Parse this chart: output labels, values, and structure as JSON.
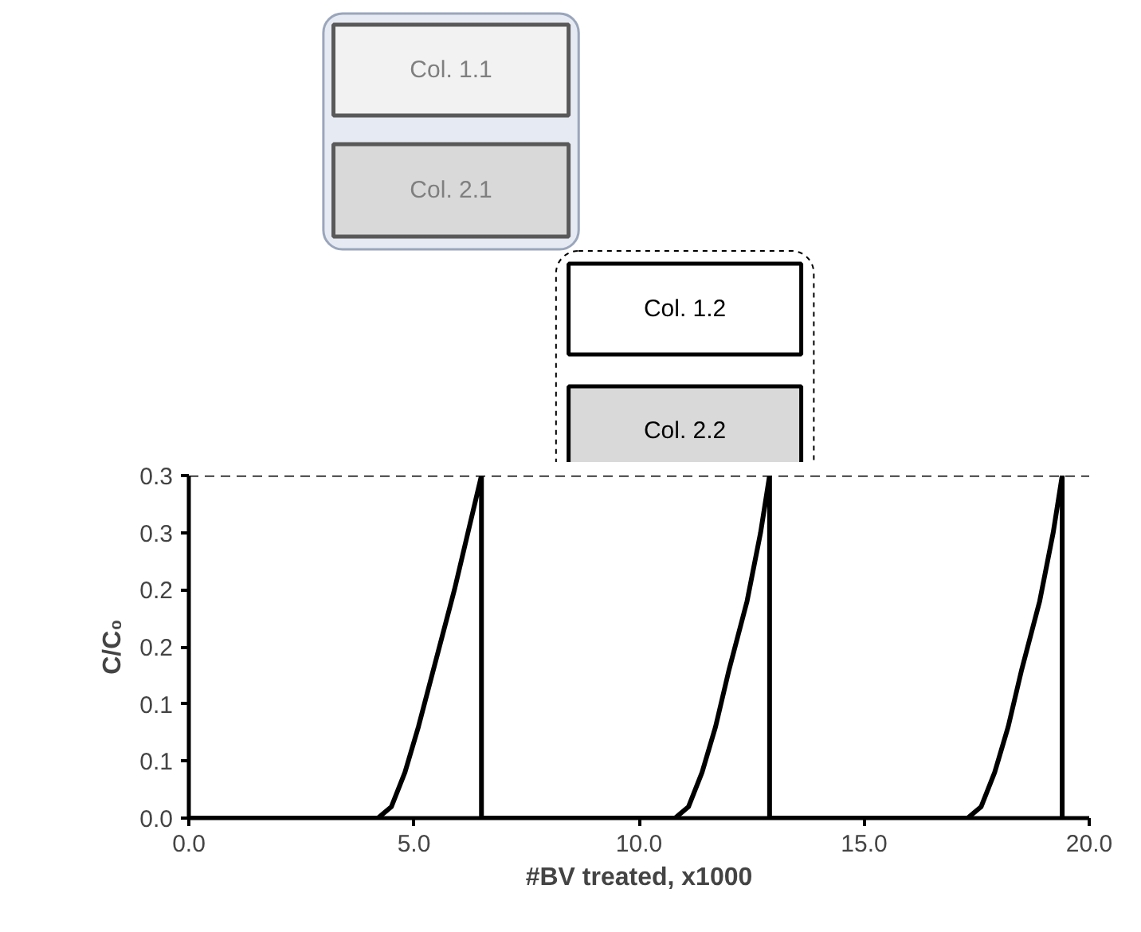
{
  "chart_data": {
    "type": "line",
    "xlabel": "#BV treated, x1000",
    "ylabel": "C/C₀",
    "series": [
      {
        "color": "#000000",
        "x": [
          0,
          4.2,
          4.5,
          4.8,
          5.1,
          5.5,
          5.9,
          6.2,
          6.5,
          6.5,
          10.8,
          11.1,
          11.4,
          11.7,
          12.0,
          12.4,
          12.7,
          12.9,
          12.9,
          17.3,
          17.6,
          17.9,
          18.2,
          18.5,
          18.9,
          19.2,
          19.4,
          19.4
        ],
        "values": [
          0,
          0,
          0.01,
          0.04,
          0.08,
          0.14,
          0.2,
          0.25,
          0.3,
          0,
          0,
          0.01,
          0.04,
          0.08,
          0.13,
          0.19,
          0.25,
          0.3,
          0,
          0,
          0.01,
          0.04,
          0.08,
          0.13,
          0.19,
          0.25,
          0.3,
          0
        ]
      }
    ],
    "xlim": [
      0,
      20
    ],
    "ylim": [
      0,
      0.3
    ],
    "xticks": [
      {
        "value": 0,
        "label": "0.0"
      },
      {
        "value": 5,
        "label": "5.0"
      },
      {
        "value": 10,
        "label": "10.0"
      },
      {
        "value": 15,
        "label": "15.0"
      },
      {
        "value": 20,
        "label": "20.0"
      }
    ],
    "yticks": [
      {
        "value": 0,
        "label": "0.0"
      },
      {
        "value": 0.05,
        "label": "0.1"
      },
      {
        "value": 0.1,
        "label": "0.1"
      },
      {
        "value": 0.15,
        "label": "0.2"
      },
      {
        "value": 0.2,
        "label": "0.2"
      },
      {
        "value": 0.25,
        "label": "0.3"
      },
      {
        "value": 0.3,
        "label": "0.3"
      }
    ],
    "ref_lines": [
      {
        "axis": "y",
        "value": 0.3,
        "color": "#000000",
        "line_style": "dashed"
      }
    ],
    "annotations": [
      "Col. 1.1",
      "Col. 2.1",
      "Col. 1.2",
      "Col. 2.2"
    ],
    "grid": false,
    "line_style": "solid",
    "marker": "none"
  }
}
